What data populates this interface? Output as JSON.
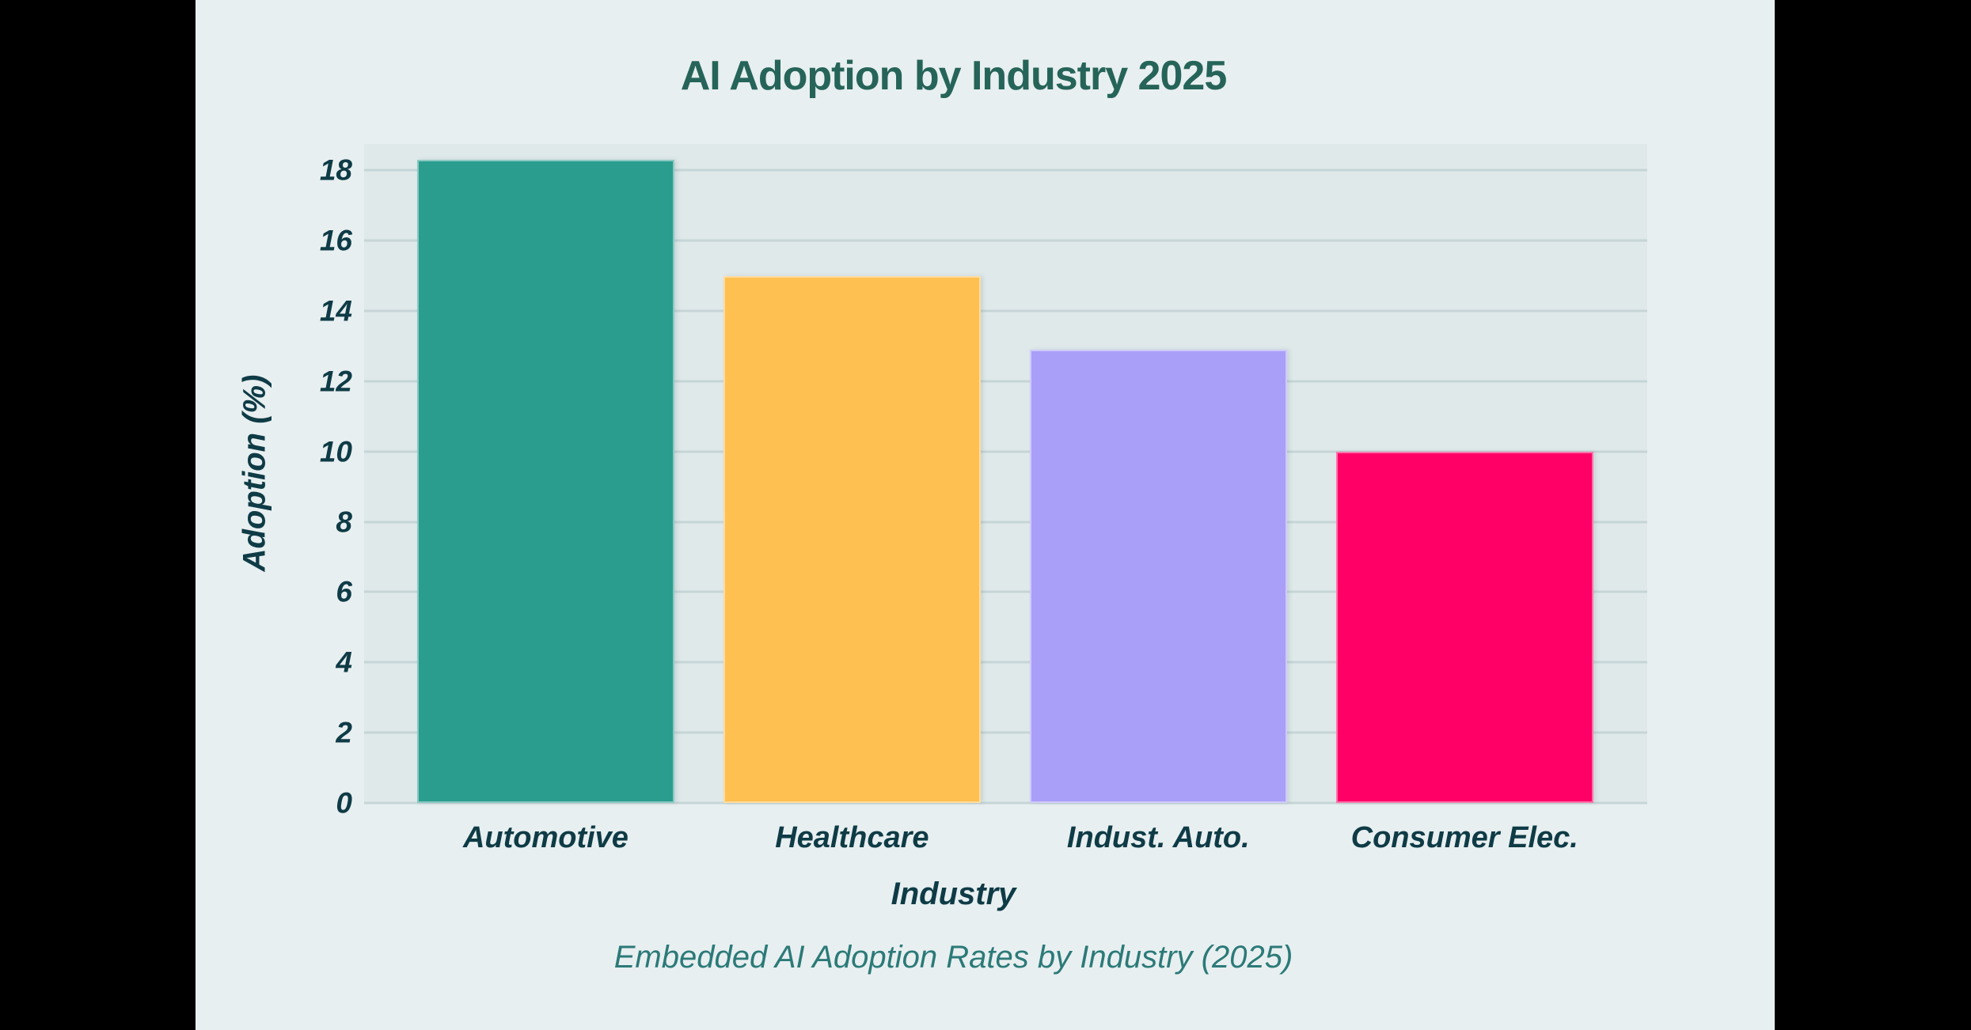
{
  "chart_data": {
    "type": "bar",
    "title": "AI Adoption by Industry 2025",
    "categories": [
      "Automotive",
      "Healthcare",
      "Indust. Auto.",
      "Consumer Elec."
    ],
    "values": [
      18.3,
      15.0,
      12.9,
      10.0
    ],
    "xlabel": "Industry",
    "ylabel": "Adoption (%)",
    "caption": "Embedded AI Adoption Rates by Industry (2025)",
    "yticks": [
      0,
      2,
      4,
      6,
      8,
      10,
      12,
      14,
      16,
      18
    ],
    "ylim": [
      0,
      18.75
    ],
    "grid": true,
    "legend": "none",
    "bar_colors": [
      "#2a9d8f",
      "#fec050",
      "#a99ef8",
      "#ff0166"
    ],
    "colors": {
      "page_background": "#e8eff0",
      "plot_background": "#dfe9ea",
      "gridline": "#c6d5d7",
      "title_text": "#266459",
      "axis_text": "#0e3b46",
      "caption_text": "#2b7a78",
      "letterbox": "#000000"
    }
  }
}
